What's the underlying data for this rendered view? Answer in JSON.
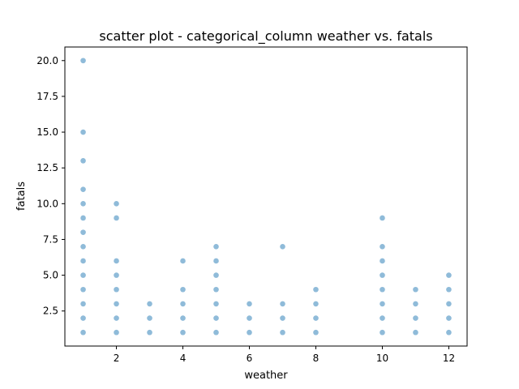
{
  "chart_data": {
    "type": "scatter",
    "title": "scatter plot - categorical_column weather vs. fatals",
    "xlabel": "weather",
    "ylabel": "fatals",
    "xlim": [
      0.45,
      12.55
    ],
    "ylim": [
      0.05,
      20.95
    ],
    "xticks": [
      2,
      4,
      6,
      8,
      10,
      12
    ],
    "xtick_labels": [
      "2",
      "4",
      "6",
      "8",
      "10",
      "12"
    ],
    "yticks": [
      2.5,
      5.0,
      7.5,
      10.0,
      12.5,
      15.0,
      17.5,
      20.0
    ],
    "ytick_labels": [
      "2.5",
      "5.0",
      "7.5",
      "10.0",
      "12.5",
      "15.0",
      "17.5",
      "20.0"
    ],
    "grid": false,
    "marker_color": "#1f77b4",
    "marker_alpha": 0.5,
    "series": [
      {
        "points": [
          [
            1,
            1
          ],
          [
            1,
            2
          ],
          [
            1,
            3
          ],
          [
            1,
            4
          ],
          [
            1,
            5
          ],
          [
            1,
            6
          ],
          [
            1,
            7
          ],
          [
            1,
            8
          ],
          [
            1,
            9
          ],
          [
            1,
            10
          ],
          [
            1,
            11
          ],
          [
            1,
            13
          ],
          [
            1,
            15
          ],
          [
            1,
            20
          ],
          [
            2,
            1
          ],
          [
            2,
            2
          ],
          [
            2,
            3
          ],
          [
            2,
            4
          ],
          [
            2,
            5
          ],
          [
            2,
            6
          ],
          [
            2,
            9
          ],
          [
            2,
            10
          ],
          [
            3,
            1
          ],
          [
            3,
            2
          ],
          [
            3,
            3
          ],
          [
            4,
            1
          ],
          [
            4,
            2
          ],
          [
            4,
            3
          ],
          [
            4,
            4
          ],
          [
            4,
            6
          ],
          [
            5,
            1
          ],
          [
            5,
            2
          ],
          [
            5,
            3
          ],
          [
            5,
            4
          ],
          [
            5,
            5
          ],
          [
            5,
            6
          ],
          [
            5,
            7
          ],
          [
            6,
            1
          ],
          [
            6,
            2
          ],
          [
            6,
            3
          ],
          [
            7,
            1
          ],
          [
            7,
            2
          ],
          [
            7,
            3
          ],
          [
            7,
            7
          ],
          [
            8,
            1
          ],
          [
            8,
            2
          ],
          [
            8,
            3
          ],
          [
            8,
            4
          ],
          [
            10,
            1
          ],
          [
            10,
            2
          ],
          [
            10,
            3
          ],
          [
            10,
            4
          ],
          [
            10,
            5
          ],
          [
            10,
            6
          ],
          [
            10,
            7
          ],
          [
            10,
            9
          ],
          [
            11,
            1
          ],
          [
            11,
            2
          ],
          [
            11,
            3
          ],
          [
            11,
            4
          ],
          [
            12,
            1
          ],
          [
            12,
            2
          ],
          [
            12,
            3
          ],
          [
            12,
            4
          ],
          [
            12,
            5
          ]
        ]
      }
    ]
  }
}
